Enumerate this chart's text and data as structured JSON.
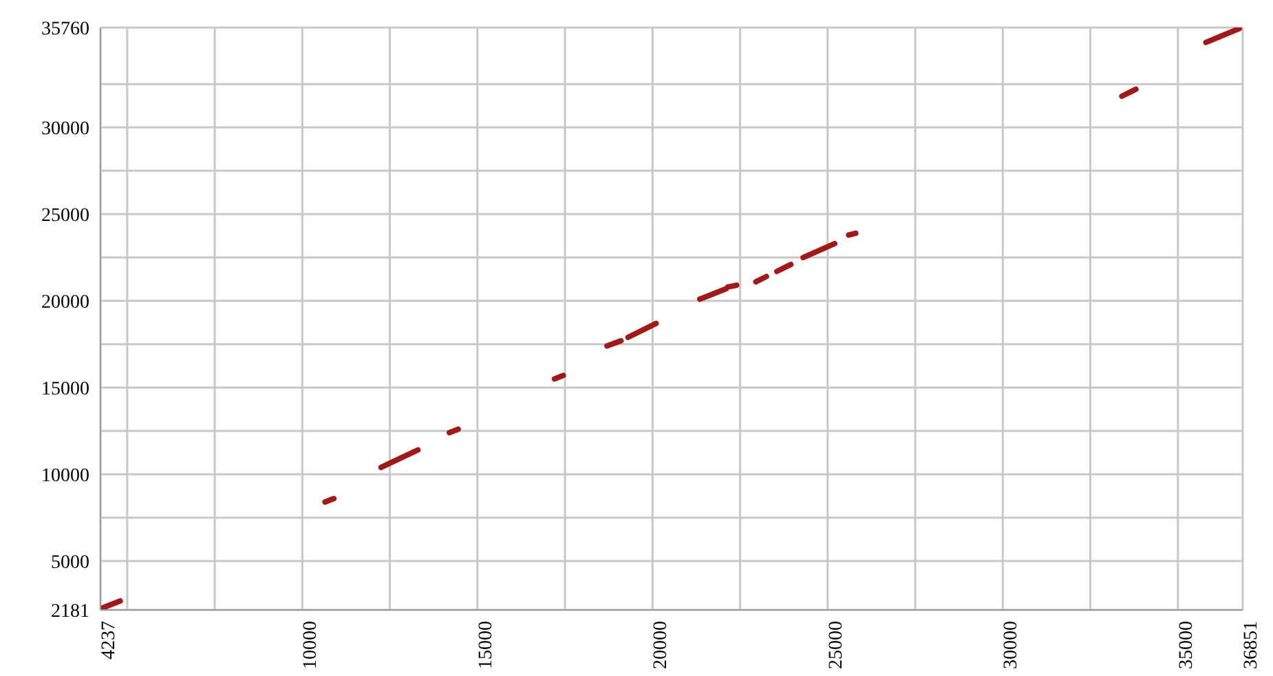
{
  "chart_data": {
    "type": "line",
    "grid": true,
    "line_style": "solid",
    "marker": "none",
    "xlim": [
      4237,
      36851
    ],
    "ylim": [
      2181,
      35760
    ],
    "xticks": [
      4237,
      {
        "value": 5000,
        "label": null
      },
      {
        "value": 7500,
        "label": null
      },
      10000,
      {
        "value": 12500,
        "label": null
      },
      15000,
      {
        "value": 17500,
        "label": null
      },
      20000,
      {
        "value": 22500,
        "label": null
      },
      25000,
      {
        "value": 27500,
        "label": null
      },
      30000,
      {
        "value": 32500,
        "label": null
      },
      35000,
      36851
    ],
    "yticks": [
      2181,
      5000,
      {
        "value": 7500,
        "label": null
      },
      10000,
      {
        "value": 12500,
        "label": null
      },
      15000,
      {
        "value": 17500,
        "label": null
      },
      20000,
      {
        "value": 22500,
        "label": null
      },
      25000,
      {
        "value": 27500,
        "label": null
      },
      30000,
      {
        "value": 32500,
        "label": null
      },
      35760
    ],
    "series": [
      {
        "color": "#a01a1a",
        "x": [
          4300,
          4800,
          7700,
          10650,
          10900,
          11600,
          12250,
          13300,
          13750,
          14200,
          14450,
          15800,
          17200,
          17450,
          18050,
          18700,
          19100,
          19200,
          19300,
          20100,
          20750,
          21350,
          22100,
          22130,
          22150,
          22400,
          22650,
          22950,
          23250,
          23400,
          23550,
          23950,
          24100,
          24300,
          25200,
          25400,
          25600,
          25800,
          29600,
          33400,
          33800,
          34800,
          35800,
          36750
        ],
        "values": [
          2300,
          2700,
          null,
          8400,
          8600,
          null,
          10400,
          11400,
          null,
          12400,
          12600,
          null,
          15500,
          15700,
          null,
          17400,
          17700,
          null,
          17900,
          18700,
          null,
          20100,
          20700,
          null,
          20800,
          20900,
          null,
          21100,
          21400,
          null,
          21700,
          22100,
          null,
          22500,
          23300,
          null,
          23800,
          23900,
          null,
          31800,
          32200,
          null,
          34900,
          35700
        ]
      }
    ]
  }
}
